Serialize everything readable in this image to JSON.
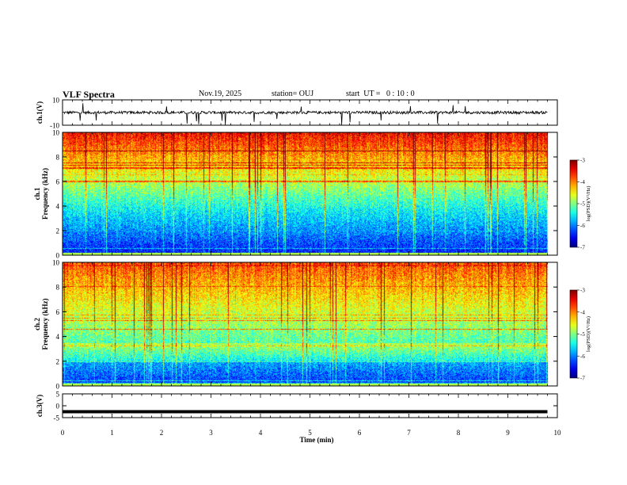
{
  "header": {
    "title": "VLF Spectra",
    "date": "Nov.19, 2025",
    "station": "station= OUJ",
    "start": "start  UT =   0 : 10 : 0"
  },
  "chart_data": [
    {
      "type": "line",
      "name": "ch1-waveform",
      "ylabel": "ch.1(V)",
      "ylim": [
        -10,
        10
      ],
      "yticks": [
        "10",
        "-10"
      ],
      "xlim": [
        0,
        10
      ],
      "baseline": 0,
      "trace_end_min": 9.8
    },
    {
      "type": "heatmap",
      "name": "ch1-spectrogram",
      "ylabel": "ch.1\nFrequency (kHz)",
      "ylim": [
        0,
        10
      ],
      "yticks": [
        "0",
        "2",
        "4",
        "6",
        "8",
        "10"
      ],
      "xlim": [
        0,
        10
      ],
      "data_end_min": 9.8,
      "colorbar": {
        "label": "log(PSD)(V²/Hz)",
        "min": -7,
        "max": -3,
        "ticks": [
          "-3",
          "-4",
          "-5",
          "-6",
          "-7"
        ]
      }
    },
    {
      "type": "heatmap",
      "name": "ch2-spectrogram",
      "ylabel": "ch.2\nFrequency (kHz)",
      "ylim": [
        0,
        10
      ],
      "yticks": [
        "0",
        "2",
        "4",
        "6",
        "8",
        "10"
      ],
      "xlim": [
        0,
        10
      ],
      "data_end_min": 9.8,
      "colorbar": {
        "label": "log(PSD)(V²/Hz)",
        "min": -7,
        "max": -3,
        "ticks": [
          "-3",
          "-4",
          "-5",
          "-6",
          "-7"
        ]
      }
    },
    {
      "type": "line",
      "name": "ch3-waveform",
      "ylabel": "ch.3(V)",
      "ylim": [
        -5,
        5
      ],
      "yticks": [
        "5",
        "0",
        "-5"
      ],
      "xlim": [
        0,
        10
      ],
      "baseline": -2.5,
      "trace_end_min": 9.8
    }
  ],
  "xaxis": {
    "label": "Time (min)",
    "ticks": [
      "0",
      "1",
      "2",
      "3",
      "4",
      "5",
      "6",
      "7",
      "8",
      "9",
      "10"
    ]
  }
}
